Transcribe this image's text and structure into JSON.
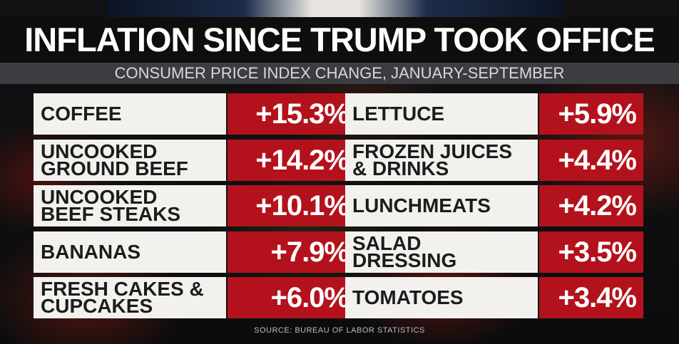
{
  "title": "INFLATION SINCE TRUMP TOOK OFFICE",
  "subtitle": "CONSUMER PRICE INDEX CHANGE, JANUARY-SEPTEMBER",
  "left_items": [
    {
      "label": "COFFEE",
      "value": "+15.3%"
    },
    {
      "label": "UNCOOKED\nGROUND BEEF",
      "value": "+14.2%"
    },
    {
      "label": "UNCOOKED\nBEEF STEAKS",
      "value": "+10.1%"
    },
    {
      "label": "BANANAS",
      "value": "+7.9%"
    },
    {
      "label": "FRESH CAKES &\nCUPCAKES",
      "value": "+6.0%"
    }
  ],
  "right_items": [
    {
      "label": "LETTUCE",
      "value": "+5.9%"
    },
    {
      "label": "FROZEN JUICES\n& DRINKS",
      "value": "+4.4%"
    },
    {
      "label": "LUNCHMEATS",
      "value": "+4.2%"
    },
    {
      "label": "SALAD\nDRESSING",
      "value": "+3.5%"
    },
    {
      "label": "TOMATOES",
      "value": "+3.4%"
    }
  ],
  "source": "SOURCE: BUREAU OF LABOR STATISTICS",
  "colors": {
    "value_bg": "#b3121c",
    "label_bg": "#f2f1ee",
    "title_bg": "#0e0e0e",
    "subtitle_bg": "#3b3d41"
  }
}
